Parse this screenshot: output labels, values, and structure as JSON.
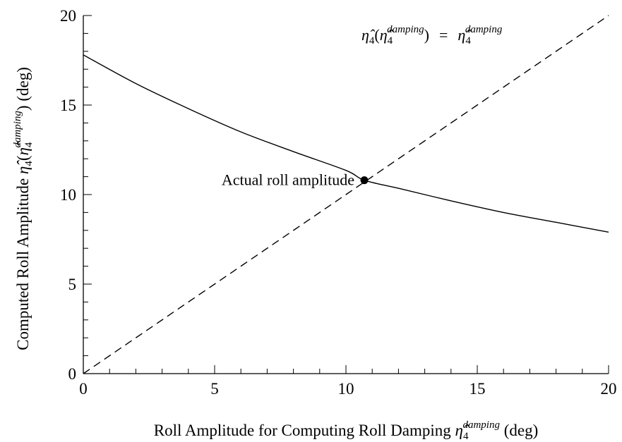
{
  "chart_data": {
    "type": "line",
    "xlabel": {
      "before": "Roll Amplitude for Computing Roll Damping ",
      "symbol": "η̂",
      "sub": "4",
      "sup": "damping",
      "after": " (deg)"
    },
    "ylabel": {
      "before": "Computed Roll Amplitude ",
      "symbol": "η̂",
      "sub": "4",
      "open": "(",
      "inner_symbol": "η̂",
      "inner_sub": "4",
      "inner_sup": "damping",
      "after": ") (deg)"
    },
    "xlim": [
      0,
      20
    ],
    "ylim": [
      0,
      20
    ],
    "x_major_ticks": [
      0,
      5,
      10,
      15,
      20
    ],
    "y_major_ticks": [
      0,
      5,
      10,
      15,
      20
    ],
    "x_tick_labels": [
      "0",
      "5",
      "10",
      "15",
      "20"
    ],
    "y_tick_labels": [
      "0",
      "5",
      "10",
      "15",
      "20"
    ],
    "grid": false,
    "series": [
      {
        "style": "solid",
        "color": "#000000",
        "x": [
          0,
          2,
          4,
          6,
          8,
          10,
          10.7,
          12,
          14,
          16,
          18,
          20
        ],
        "y": [
          17.8,
          16.2,
          14.8,
          13.5,
          12.4,
          11.35,
          10.8,
          10.35,
          9.65,
          9.0,
          8.45,
          7.9
        ]
      },
      {
        "style": "dashed",
        "color": "#000000",
        "x": [
          0,
          20
        ],
        "y": [
          0,
          20
        ]
      }
    ],
    "line_annotation": {
      "symbol": "η̂",
      "sub": "4",
      "open": "(",
      "inner_symbol": "η̂",
      "inner_sub": "4",
      "inner_sup": "damping",
      "close": ")",
      "equals": "=",
      "rhs_symbol": "η̂",
      "rhs_sub": "4",
      "rhs_sup": "damping"
    },
    "marker": {
      "x": 10.7,
      "y": 10.8,
      "label": "Actual roll amplitude"
    }
  }
}
